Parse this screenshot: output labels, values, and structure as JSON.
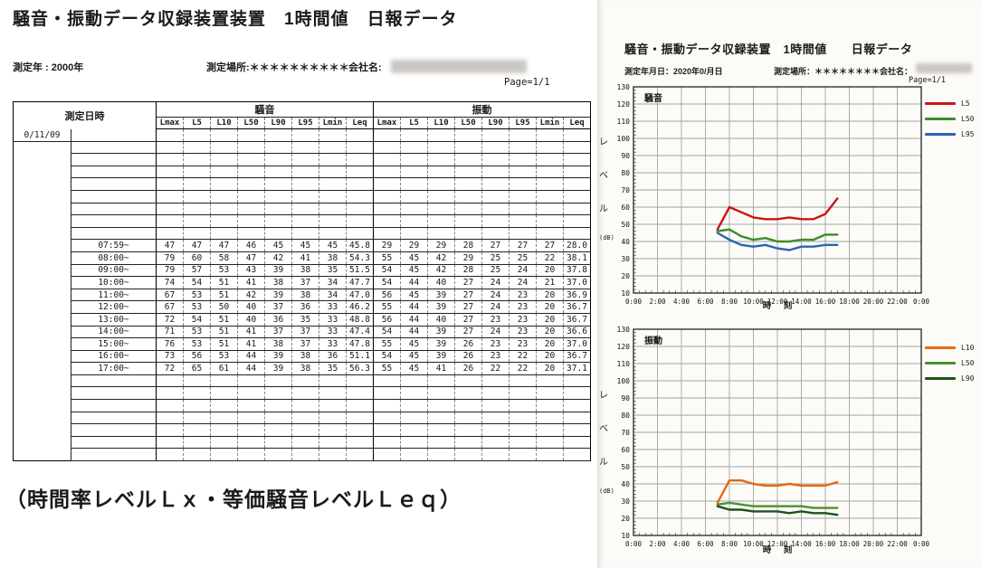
{
  "report_left": {
    "title": "騒音・振動データ収録装置装置　1時間値　日報データ",
    "meta_year": "測定年 : 2000年",
    "meta_location": "測定場所:＊＊＊＊＊＊＊＊＊＊",
    "meta_company": "会社名:",
    "page_indicator": "Page=1/1",
    "caption": "（時間率レベルＬｘ・等価騒音レベルＬｅｑ）",
    "table": {
      "datetime_header": "測定日時",
      "noise_group_header": "騒音",
      "vibration_group_header": "振動",
      "column_headers": [
        "Lmax",
        "L5",
        "L10",
        "L50",
        "L90",
        "L95",
        "Lmin",
        "Leq"
      ],
      "date": "0/11/09",
      "rows": [
        {
          "time": "",
          "noise": [
            "",
            "",
            "",
            "",
            "",
            "",
            "",
            ""
          ],
          "vib": [
            "",
            "",
            "",
            "",
            "",
            "",
            "",
            ""
          ]
        },
        {
          "time": "",
          "noise": [
            "",
            "",
            "",
            "",
            "",
            "",
            "",
            ""
          ],
          "vib": [
            "",
            "",
            "",
            "",
            "",
            "",
            "",
            ""
          ]
        },
        {
          "time": "",
          "noise": [
            "",
            "",
            "",
            "",
            "",
            "",
            "",
            ""
          ],
          "vib": [
            "",
            "",
            "",
            "",
            "",
            "",
            "",
            ""
          ]
        },
        {
          "time": "",
          "noise": [
            "",
            "",
            "",
            "",
            "",
            "",
            "",
            ""
          ],
          "vib": [
            "",
            "",
            "",
            "",
            "",
            "",
            "",
            ""
          ]
        },
        {
          "time": "",
          "noise": [
            "",
            "",
            "",
            "",
            "",
            "",
            "",
            ""
          ],
          "vib": [
            "",
            "",
            "",
            "",
            "",
            "",
            "",
            ""
          ]
        },
        {
          "time": "",
          "noise": [
            "",
            "",
            "",
            "",
            "",
            "",
            "",
            ""
          ],
          "vib": [
            "",
            "",
            "",
            "",
            "",
            "",
            "",
            ""
          ]
        },
        {
          "time": "",
          "noise": [
            "",
            "",
            "",
            "",
            "",
            "",
            "",
            ""
          ],
          "vib": [
            "",
            "",
            "",
            "",
            "",
            "",
            "",
            ""
          ]
        },
        {
          "time": "",
          "noise": [
            "",
            "",
            "",
            "",
            "",
            "",
            "",
            ""
          ],
          "vib": [
            "",
            "",
            "",
            "",
            "",
            "",
            "",
            ""
          ]
        },
        {
          "time": "",
          "noise": [
            "",
            "",
            "",
            "",
            "",
            "",
            "",
            ""
          ],
          "vib": [
            "",
            "",
            "",
            "",
            "",
            "",
            "",
            ""
          ]
        },
        {
          "time": "07:59~",
          "noise": [
            "47",
            "47",
            "47",
            "46",
            "45",
            "45",
            "45",
            "45.8"
          ],
          "vib": [
            "29",
            "29",
            "29",
            "28",
            "27",
            "27",
            "27",
            "28.0"
          ]
        },
        {
          "time": "08:00~",
          "noise": [
            "79",
            "60",
            "58",
            "47",
            "42",
            "41",
            "38",
            "54.3"
          ],
          "vib": [
            "55",
            "45",
            "42",
            "29",
            "25",
            "25",
            "22",
            "38.1"
          ]
        },
        {
          "time": "09:00~",
          "noise": [
            "79",
            "57",
            "53",
            "43",
            "39",
            "38",
            "35",
            "51.5"
          ],
          "vib": [
            "54",
            "45",
            "42",
            "28",
            "25",
            "24",
            "20",
            "37.8"
          ]
        },
        {
          "time": "10:00~",
          "noise": [
            "74",
            "54",
            "51",
            "41",
            "38",
            "37",
            "34",
            "47.7"
          ],
          "vib": [
            "54",
            "44",
            "40",
            "27",
            "24",
            "24",
            "21",
            "37.0"
          ]
        },
        {
          "time": "11:00~",
          "noise": [
            "67",
            "53",
            "51",
            "42",
            "39",
            "38",
            "34",
            "47.0"
          ],
          "vib": [
            "56",
            "45",
            "39",
            "27",
            "24",
            "23",
            "20",
            "36.9"
          ]
        },
        {
          "time": "12:00~",
          "noise": [
            "67",
            "53",
            "50",
            "40",
            "37",
            "36",
            "33",
            "46.2"
          ],
          "vib": [
            "55",
            "44",
            "39",
            "27",
            "24",
            "23",
            "20",
            "36.7"
          ]
        },
        {
          "time": "13:00~",
          "noise": [
            "72",
            "54",
            "51",
            "40",
            "36",
            "35",
            "33",
            "48.8"
          ],
          "vib": [
            "56",
            "44",
            "40",
            "27",
            "23",
            "23",
            "20",
            "36.7"
          ]
        },
        {
          "time": "14:00~",
          "noise": [
            "71",
            "53",
            "51",
            "41",
            "37",
            "37",
            "33",
            "47.4"
          ],
          "vib": [
            "54",
            "44",
            "39",
            "27",
            "24",
            "23",
            "20",
            "36.6"
          ]
        },
        {
          "time": "15:00~",
          "noise": [
            "76",
            "53",
            "51",
            "41",
            "38",
            "37",
            "33",
            "47.8"
          ],
          "vib": [
            "55",
            "45",
            "39",
            "26",
            "23",
            "23",
            "20",
            "37.0"
          ]
        },
        {
          "time": "16:00~",
          "noise": [
            "73",
            "56",
            "53",
            "44",
            "39",
            "38",
            "36",
            "51.1"
          ],
          "vib": [
            "54",
            "45",
            "39",
            "26",
            "23",
            "22",
            "20",
            "36.7"
          ]
        },
        {
          "time": "17:00~",
          "noise": [
            "72",
            "65",
            "61",
            "44",
            "39",
            "38",
            "35",
            "56.3"
          ],
          "vib": [
            "55",
            "45",
            "41",
            "26",
            "22",
            "22",
            "20",
            "37.1"
          ]
        },
        {
          "time": "",
          "noise": [
            "",
            "",
            "",
            "",
            "",
            "",
            "",
            ""
          ],
          "vib": [
            "",
            "",
            "",
            "",
            "",
            "",
            "",
            ""
          ]
        },
        {
          "time": "",
          "noise": [
            "",
            "",
            "",
            "",
            "",
            "",
            "",
            ""
          ],
          "vib": [
            "",
            "",
            "",
            "",
            "",
            "",
            "",
            ""
          ]
        },
        {
          "time": "",
          "noise": [
            "",
            "",
            "",
            "",
            "",
            "",
            "",
            ""
          ],
          "vib": [
            "",
            "",
            "",
            "",
            "",
            "",
            "",
            ""
          ]
        },
        {
          "time": "",
          "noise": [
            "",
            "",
            "",
            "",
            "",
            "",
            "",
            ""
          ],
          "vib": [
            "",
            "",
            "",
            "",
            "",
            "",
            "",
            ""
          ]
        },
        {
          "time": "",
          "noise": [
            "",
            "",
            "",
            "",
            "",
            "",
            "",
            ""
          ],
          "vib": [
            "",
            "",
            "",
            "",
            "",
            "",
            "",
            ""
          ]
        },
        {
          "time": "",
          "noise": [
            "",
            "",
            "",
            "",
            "",
            "",
            "",
            ""
          ],
          "vib": [
            "",
            "",
            "",
            "",
            "",
            "",
            "",
            ""
          ]
        },
        {
          "time": "",
          "noise": [
            "",
            "",
            "",
            "",
            "",
            "",
            "",
            ""
          ],
          "vib": [
            "",
            "",
            "",
            "",
            "",
            "",
            "",
            ""
          ]
        }
      ]
    }
  },
  "report_right": {
    "title": "騒音・振動データ収録装置　1時間値　　日報データ",
    "meta_date": "測定年月日：2020年0/月日",
    "meta_location_company": "測定場所：＊＊＊＊＊＊＊＊会社名：",
    "page_indicator": "Page=1/1",
    "xlabel": "時　刻",
    "ylabel_chars": [
      "レ",
      "ベ",
      "ル",
      "(dB)"
    ]
  },
  "chart_data": [
    {
      "type": "line",
      "title": "騒音",
      "xlabel": "時　刻",
      "ylabel": "レベル (dB)",
      "ylim": [
        10,
        130
      ],
      "ytick_step": 10,
      "x_range_hours": [
        0,
        24
      ],
      "xtick_labels": [
        "0:00",
        "2:00",
        "4:00",
        "6:00",
        "8:00",
        "10:00",
        "12:00",
        "14:00",
        "16:00",
        "18:00",
        "20:00",
        "22:00",
        "0:00"
      ],
      "x_hours": [
        7,
        8,
        9,
        10,
        11,
        12,
        13,
        14,
        15,
        16,
        17
      ],
      "grid": true,
      "legend_position": "right",
      "series": [
        {
          "name": "L5",
          "color": "#cc1414",
          "values": [
            47,
            60,
            57,
            54,
            53,
            53,
            54,
            53,
            53,
            56,
            65
          ]
        },
        {
          "name": "L50",
          "color": "#3d8c2a",
          "values": [
            46,
            47,
            43,
            41,
            42,
            40,
            40,
            41,
            41,
            44,
            44
          ]
        },
        {
          "name": "L95",
          "color": "#2c63b5",
          "values": [
            45,
            41,
            38,
            37,
            38,
            36,
            35,
            37,
            37,
            38,
            38
          ]
        }
      ]
    },
    {
      "type": "line",
      "title": "振動",
      "xlabel": "時　刻",
      "ylabel": "レベル (dB)",
      "ylim": [
        10,
        130
      ],
      "ytick_step": 10,
      "x_range_hours": [
        0,
        24
      ],
      "xtick_labels": [
        "0:00",
        "2:00",
        "4:00",
        "6:00",
        "8:00",
        "10:00",
        "12:00",
        "14:00",
        "16:00",
        "18:00",
        "20:00",
        "22:00",
        "0:00"
      ],
      "x_hours": [
        7,
        8,
        9,
        10,
        11,
        12,
        13,
        14,
        15,
        16,
        17
      ],
      "grid": true,
      "legend_position": "right",
      "series": [
        {
          "name": "L10",
          "color": "#e8680f",
          "values": [
            29,
            42,
            42,
            40,
            39,
            39,
            40,
            39,
            39,
            39,
            41
          ]
        },
        {
          "name": "L50",
          "color": "#4d8f30",
          "values": [
            28,
            29,
            28,
            27,
            27,
            27,
            27,
            27,
            26,
            26,
            26
          ]
        },
        {
          "name": "L90",
          "color": "#20511a",
          "values": [
            27,
            25,
            25,
            24,
            24,
            24,
            23,
            24,
            23,
            23,
            22
          ]
        }
      ]
    }
  ]
}
